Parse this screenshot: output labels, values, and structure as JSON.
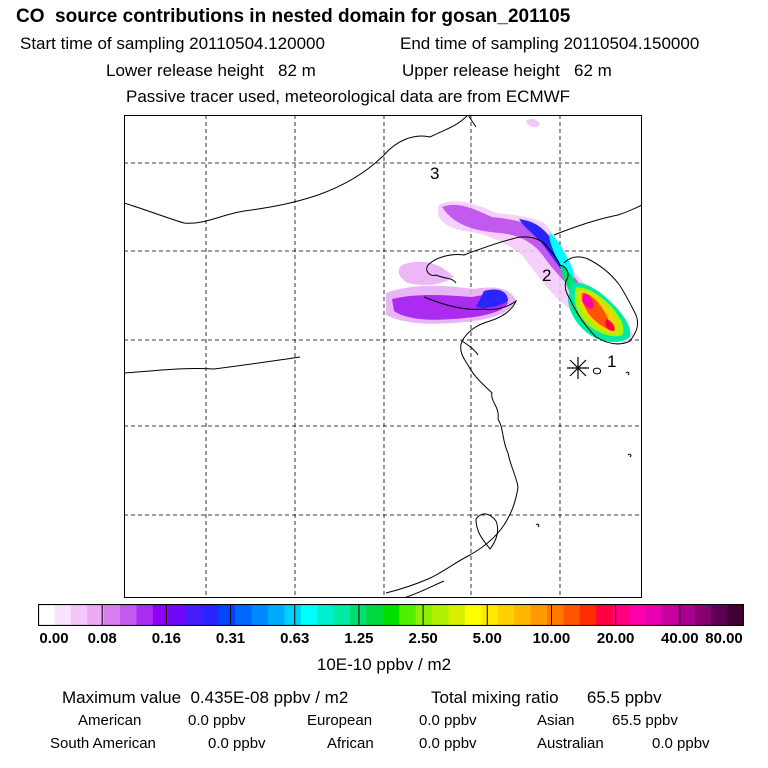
{
  "header": {
    "title": "CO  source contributions in nested domain for gosan_201105",
    "start_label": "Start time of sampling 20110504.120000",
    "end_label": "End time of sampling 20110504.150000",
    "lower_label": "Lower release height   82 m",
    "upper_label": "Upper release height   62 m",
    "tracer_note": "Passive tracer used, meteorological data are from ECMWF"
  },
  "map": {
    "labels": {
      "l1": "1",
      "l2": "2",
      "l3": "3"
    },
    "receptor_marker": "asterisk-icon"
  },
  "colorbar": {
    "ticks": [
      "0.00",
      "0.08",
      "0.16",
      "0.31",
      "0.63",
      "1.25",
      "2.50",
      "5.00",
      "10.00",
      "20.00",
      "40.00",
      "80.00"
    ],
    "colors": [
      "#ffffff",
      "#f8e4fc",
      "#f2c8fa",
      "#eaaaf6",
      "#d77ef2",
      "#c25aef",
      "#ab2cf0",
      "#8e00f5",
      "#6e0af7",
      "#4a1bfa",
      "#2a25ff",
      "#0046ff",
      "#0068ff",
      "#0088ff",
      "#00aaff",
      "#00d0ff",
      "#00ffff",
      "#00f0d0",
      "#00eaa4",
      "#00e070",
      "#00d840",
      "#00e000",
      "#50f000",
      "#8cf000",
      "#b0f000",
      "#d8f000",
      "#ffff00",
      "#ffe800",
      "#ffd000",
      "#ffb800",
      "#ff9a00",
      "#ff7800",
      "#ff5500",
      "#ff2c00",
      "#ff0040",
      "#ff0080",
      "#ff00aa",
      "#e800b0",
      "#c800a0",
      "#a80090",
      "#880070",
      "#600050",
      "#400030"
    ],
    "units": "10E-10 ppbv / m2"
  },
  "summary": {
    "max_label": "Maximum value  0.435E-08 ppbv / m2",
    "total_label": "Total mixing ratio      65.5 ppbv",
    "american_label": "American",
    "american_value": "0.0 ppbv",
    "european_label": "European",
    "european_value": "0.0 ppbv",
    "asian_label": "Asian",
    "asian_value": "65.5 ppbv",
    "south_american_label": "South American",
    "south_american_value": "0.0 ppbv",
    "african_label": "African",
    "african_value": "0.0 ppbv",
    "australian_label": "Australian",
    "australian_value": "0.0 ppbv"
  }
}
